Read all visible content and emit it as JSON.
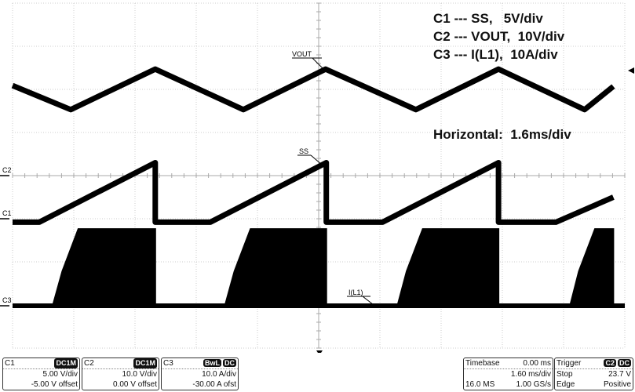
{
  "annotations": {
    "c1": "C1 --- SS,   5V/div",
    "c2": "C2 --- VOUT,  10V/div",
    "c3": "C3 --- I(L1),  10A/div",
    "horizontal": "Horizontal:  1.6ms/div"
  },
  "trace_labels": {
    "vout": "VOUT",
    "ss": "SS",
    "il1": "I(L1)"
  },
  "channel_markers": {
    "c1": "C1",
    "c2": "C2",
    "c3": "C3"
  },
  "panels": {
    "c1": {
      "name": "C1",
      "coupling": "DC1M",
      "scale": "5.00 V/div",
      "offset": "-5.00 V offset"
    },
    "c2": {
      "name": "C2",
      "coupling": "DC1M",
      "scale": "10.0 V/div",
      "offset": "0.00 V offset"
    },
    "c3": {
      "name": "C3",
      "coupling": "DC",
      "bw": "BwL",
      "scale": "10.0 A/div",
      "offset": "-30.00 A ofst"
    },
    "timebase": {
      "label": "Timebase",
      "delay": "0.00 ms",
      "scale": "1.60 ms/div",
      "samples": "16.0 MS",
      "rate": "1.00 GS/s"
    },
    "trigger": {
      "label": "Trigger",
      "source": "C2",
      "coupling": "DC",
      "mode": "Stop",
      "level": "23.7 V",
      "type": "Edge",
      "slope": "Positive"
    }
  },
  "chart_data": {
    "type": "line",
    "xlabel": "",
    "ylabel": "",
    "x_unit": "ms",
    "xlim": [
      -8,
      8
    ],
    "x_per_div": 1.6,
    "grid": true,
    "series": [
      {
        "name": "VOUT",
        "channel": "C2",
        "unit": "V",
        "per_div": 10,
        "color": "#000000",
        "points": [
          [
            -8,
            20.9
          ],
          [
            -6.48,
            15.3
          ],
          [
            -4.27,
            24.7
          ],
          [
            -1.97,
            15.3
          ],
          [
            0.18,
            24.7
          ],
          [
            2.54,
            15.3
          ],
          [
            4.7,
            24.7
          ],
          [
            6.95,
            15.3
          ],
          [
            7.7,
            20.7
          ]
        ]
      },
      {
        "name": "SS",
        "channel": "C1",
        "unit": "V",
        "per_div": 5,
        "color": "#000000",
        "points": [
          [
            -8,
            -0.4
          ],
          [
            -7.3,
            -0.4
          ],
          [
            -4.27,
            6.5
          ],
          [
            -4.27,
            -0.4
          ],
          [
            -2.83,
            -0.4
          ],
          [
            0.2,
            6.5
          ],
          [
            0.2,
            -0.4
          ],
          [
            1.67,
            -0.4
          ],
          [
            4.7,
            6.5
          ],
          [
            4.7,
            -0.4
          ],
          [
            6.2,
            -0.4
          ],
          [
            7.7,
            2.5
          ]
        ]
      },
      {
        "name": "I(L1)",
        "channel": "C3",
        "unit": "A",
        "per_div": 10,
        "color": "#000000",
        "style": "burst-envelope",
        "points": [
          [
            -8,
            0
          ],
          [
            -6.95,
            0
          ],
          [
            -6.7,
            8
          ],
          [
            -6.28,
            17.8
          ],
          [
            -4.27,
            17.8
          ],
          [
            -4.27,
            0
          ],
          [
            -2.45,
            0
          ],
          [
            -2.2,
            8
          ],
          [
            -1.78,
            17.8
          ],
          [
            0.2,
            17.8
          ],
          [
            0.2,
            0
          ],
          [
            2.06,
            0
          ],
          [
            2.3,
            8
          ],
          [
            2.72,
            17.8
          ],
          [
            4.7,
            17.8
          ],
          [
            4.7,
            0
          ],
          [
            6.57,
            0
          ],
          [
            6.8,
            8
          ],
          [
            7.22,
            17.8
          ],
          [
            7.7,
            17.8
          ]
        ]
      }
    ]
  }
}
